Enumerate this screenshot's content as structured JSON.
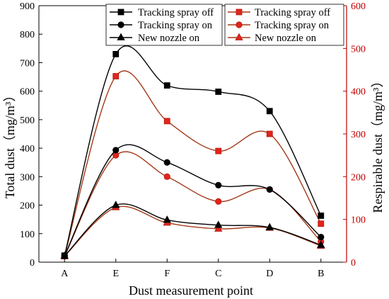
{
  "chart_data": {
    "type": "line",
    "xlabel": "Dust measurement point",
    "categories": [
      "A",
      "E",
      "F",
      "C",
      "D",
      "B"
    ],
    "left_axis": {
      "label": "Total dust（mg/m³）",
      "ylim": [
        0,
        900
      ],
      "ticks": [
        "0",
        "100",
        "200",
        "300",
        "400",
        "500",
        "600",
        "700",
        "800",
        "900"
      ],
      "color": "#000000"
    },
    "right_axis": {
      "label": "Respirable dust（mg/m³）",
      "ylim": [
        0,
        600
      ],
      "ticks": [
        "0",
        "100",
        "200",
        "300",
        "400",
        "500",
        "600"
      ],
      "color": "#c00000"
    },
    "left_series": [
      {
        "name": "Tracking spray off",
        "marker": "square",
        "values": [
          23,
          730,
          620,
          598,
          530,
          163
        ]
      },
      {
        "name": "Tracking spray on",
        "marker": "circle",
        "values": [
          22,
          393,
          350,
          270,
          255,
          88
        ]
      },
      {
        "name": "New nozzle on",
        "marker": "triangle",
        "values": [
          22,
          200,
          148,
          130,
          122,
          60
        ]
      }
    ],
    "right_series": [
      {
        "name": "Tracking spray off",
        "marker": "square",
        "values": [
          14,
          435,
          330,
          260,
          300,
          90
        ]
      },
      {
        "name": "Tracking spray on",
        "marker": "circle",
        "values": [
          14,
          250,
          200,
          142,
          170,
          48
        ]
      },
      {
        "name": "New nozzle on",
        "marker": "triangle",
        "values": [
          14,
          128,
          92,
          78,
          80,
          38
        ]
      }
    ],
    "legend_left_placement": "top-left",
    "legend_right_placement": "top-right",
    "grid": false
  }
}
